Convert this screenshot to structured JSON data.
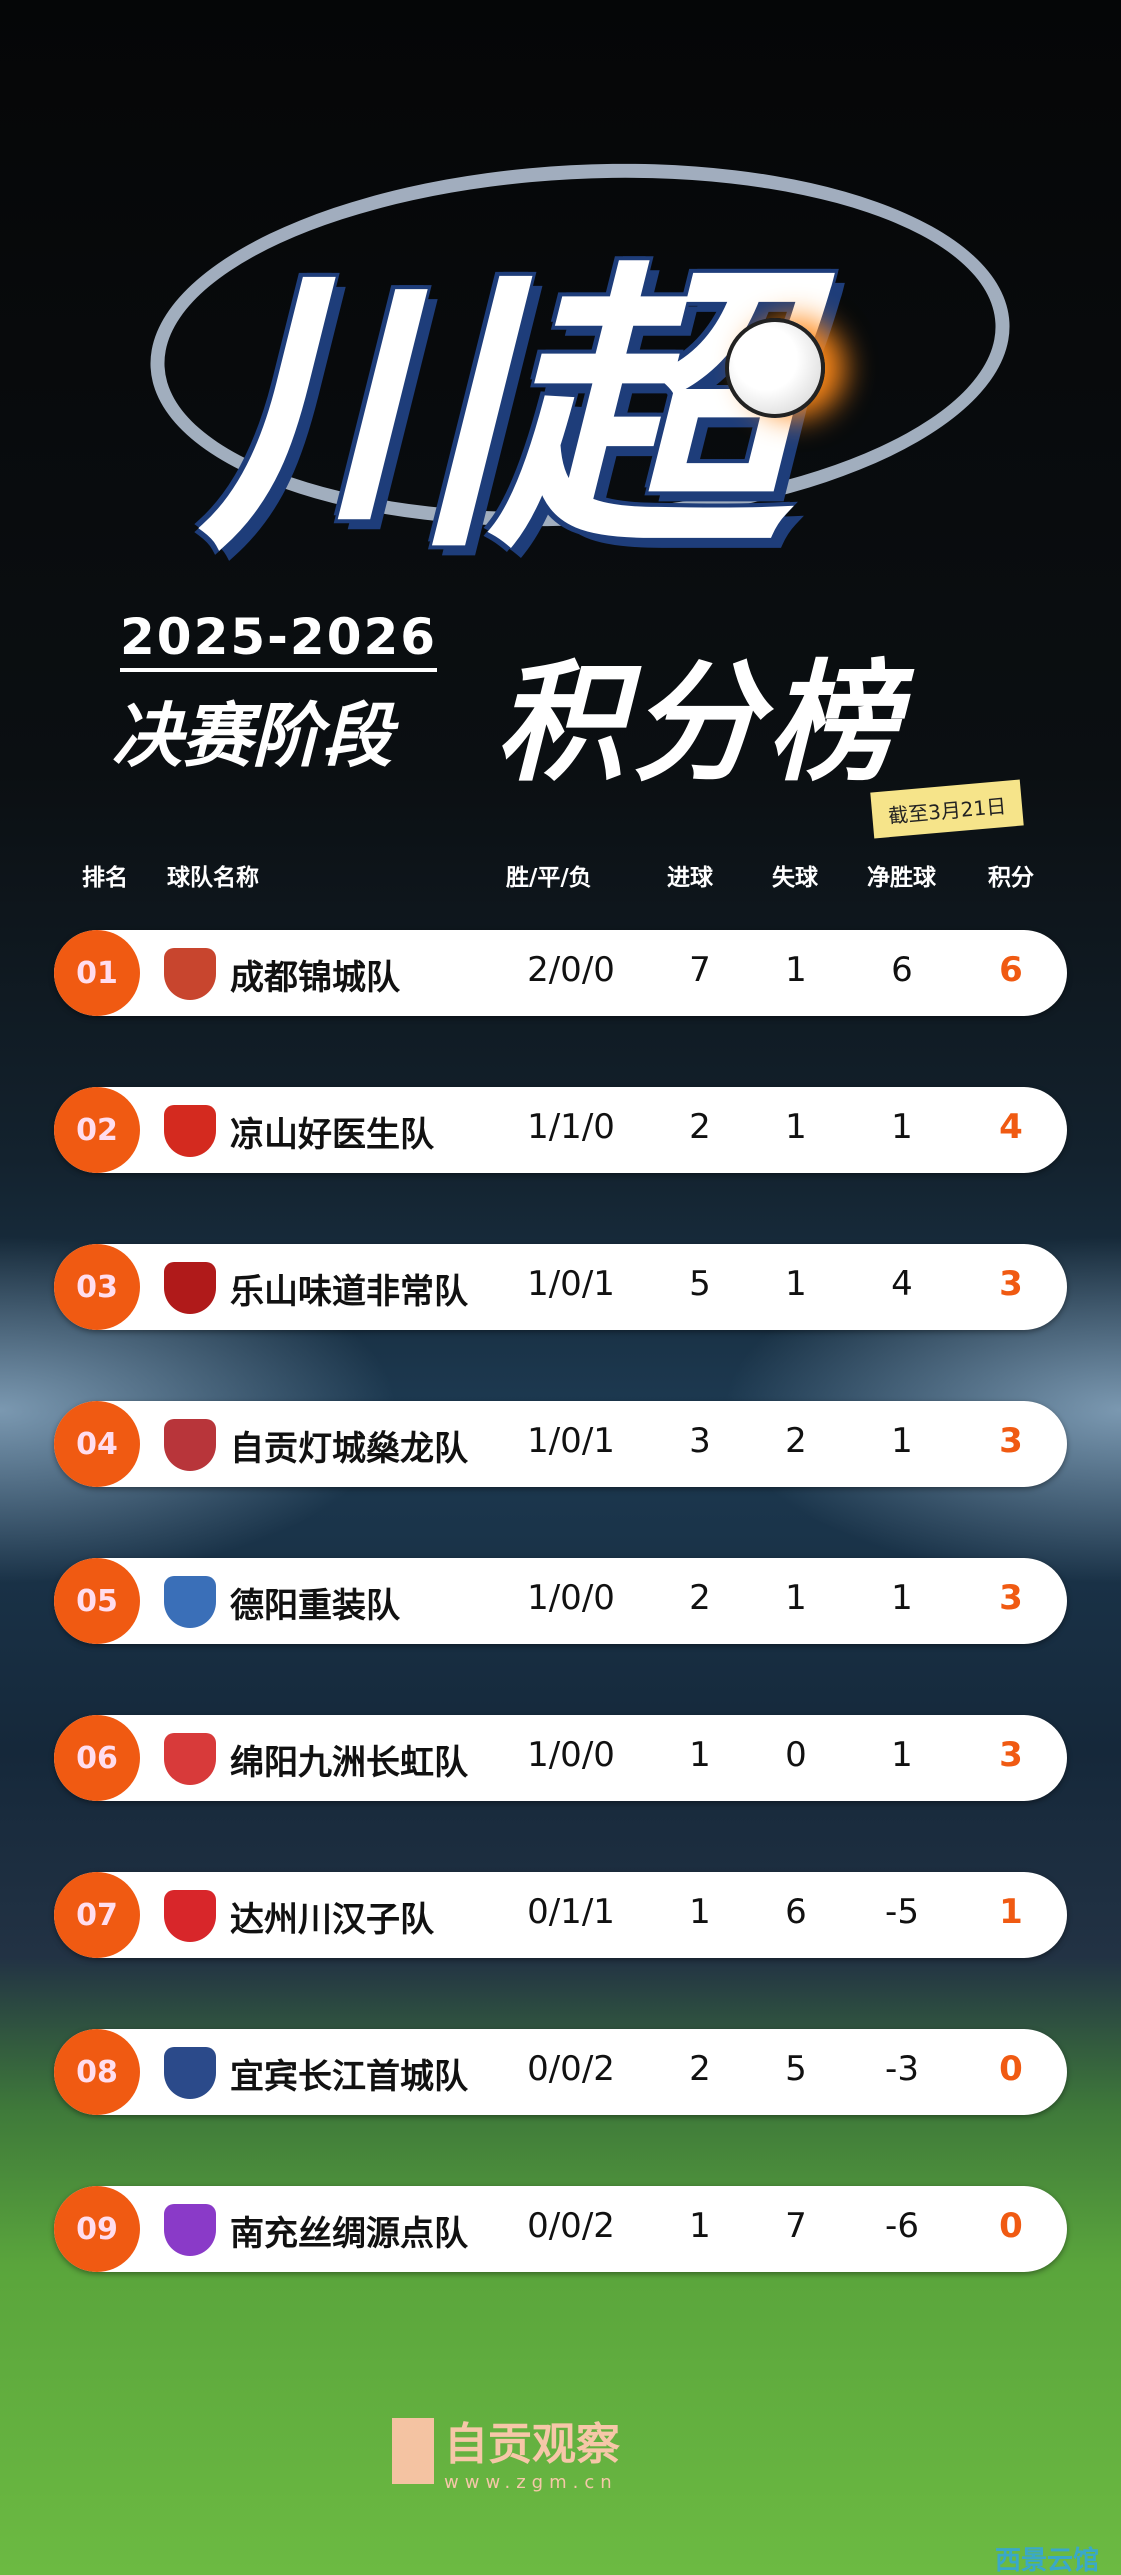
{
  "header": {
    "title": "川超",
    "season": "2025-2026",
    "stage": "决赛阶段",
    "board": "积分榜",
    "date_badge": "截至3月21日"
  },
  "columns": {
    "rank": "排名",
    "team": "球队名称",
    "wdl": "胜/平/负",
    "goals_for": "进球",
    "goals_against": "失球",
    "goal_diff": "净胜球",
    "points": "积分"
  },
  "colors": {
    "accent": "#f05a12",
    "badge": "#f6e48a"
  },
  "rows": [
    {
      "rank": "01",
      "team": "成都锦城队",
      "wdl": "2/0/0",
      "gf": "7",
      "ga": "1",
      "gd": "6",
      "pts": "6",
      "logo_color": "#c8452e"
    },
    {
      "rank": "02",
      "team": "凉山好医生队",
      "wdl": "1/1/0",
      "gf": "2",
      "ga": "1",
      "gd": "1",
      "pts": "4",
      "logo_color": "#d42a1f"
    },
    {
      "rank": "03",
      "team": "乐山味道非常队",
      "wdl": "1/0/1",
      "gf": "5",
      "ga": "1",
      "gd": "4",
      "pts": "3",
      "logo_color": "#b01a1a"
    },
    {
      "rank": "04",
      "team": "自贡灯城燊龙队",
      "wdl": "1/0/1",
      "gf": "3",
      "ga": "2",
      "gd": "1",
      "pts": "3",
      "logo_color": "#b8353a"
    },
    {
      "rank": "05",
      "team": "德阳重装队",
      "wdl": "1/0/0",
      "gf": "2",
      "ga": "1",
      "gd": "1",
      "pts": "3",
      "logo_color": "#3a6fb8"
    },
    {
      "rank": "06",
      "team": "绵阳九洲长虹队",
      "wdl": "1/0/0",
      "gf": "1",
      "ga": "0",
      "gd": "1",
      "pts": "3",
      "logo_color": "#d83a3a"
    },
    {
      "rank": "07",
      "team": "达州川汉子队",
      "wdl": "0/1/1",
      "gf": "1",
      "ga": "6",
      "gd": "-5",
      "pts": "1",
      "logo_color": "#d8262a"
    },
    {
      "rank": "08",
      "team": "宜宾长江首城队",
      "wdl": "0/0/2",
      "gf": "2",
      "ga": "5",
      "gd": "-3",
      "pts": "0",
      "logo_color": "#2b4a8a"
    },
    {
      "rank": "09",
      "team": "南充丝绸源点队",
      "wdl": "0/0/2",
      "gf": "1",
      "ga": "7",
      "gd": "-6",
      "pts": "0",
      "logo_color": "#8a3ac8"
    }
  ],
  "watermark": {
    "brand": "自贡观察",
    "url": "www.zgm.cn",
    "corner": "西景云馆"
  }
}
